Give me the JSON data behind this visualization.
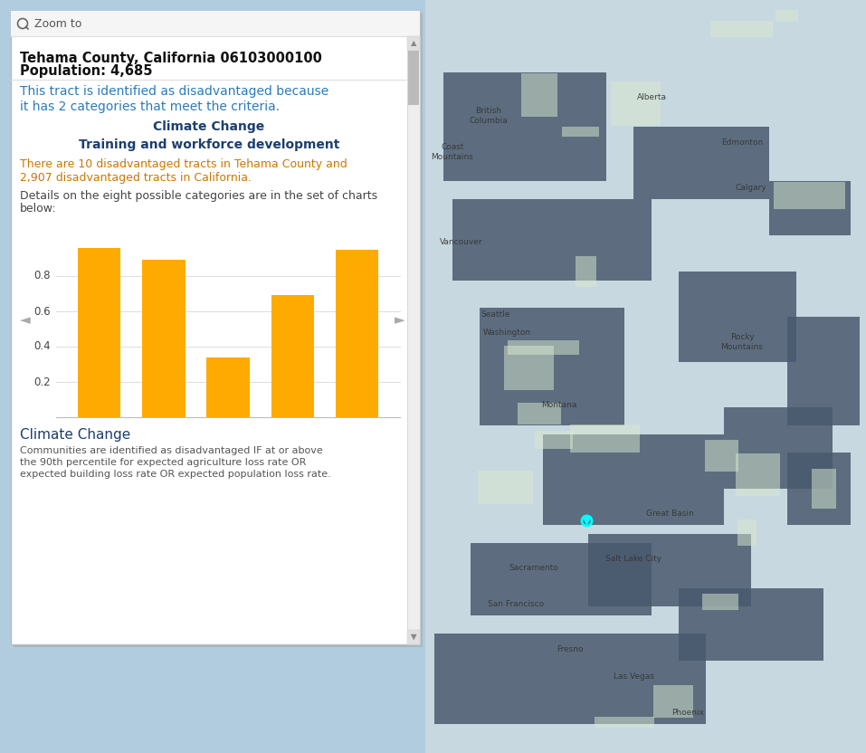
{
  "title_bold": "Tehama County, California 06103000100",
  "title_line2": "Population: 4,685",
  "category1": "Climate Change",
  "category2": "Training and workforce development",
  "orange_line1": "There are 10 disadvantaged tracts in Tehama County and",
  "orange_line2": "2,907 disadvantaged tracts in California.",
  "details_line1": "Details on the eight possible categories are in the set of charts",
  "details_line2": "below:",
  "bar_values": [
    0.96,
    0.89,
    0.34,
    0.69,
    0.95
  ],
  "bar_color": "#FFAA00",
  "chart_title": "Climate Change",
  "chart_desc_line1": "Communities are identified as disadvantaged IF at or above",
  "chart_desc_line2": "the 90th percentile for expected agriculture loss rate OR",
  "chart_desc_line3": "expected building loss rate OR expected population loss rate.",
  "zoom_text": "Zoom to",
  "nav_left": "◄",
  "nav_right": "►",
  "yticks": [
    0.2,
    0.4,
    0.6,
    0.8
  ],
  "panel_bg": "#FFFFFF",
  "zoom_bar_bg": "#F7F7F7",
  "border_color": "#CCCCCC",
  "scrollbar_bg": "#E0E0E0",
  "scrollbar_thumb": "#AAAAAA",
  "text_dark": "#1A1A1A",
  "text_blue": "#2B7BB9",
  "text_category": "#1C3F6E",
  "text_orange": "#CC7700",
  "text_gray": "#444444",
  "map_bg": "#C8D8E8",
  "overall_bg": "#B0CCDE",
  "disadv_line1": "This tract is identified as disadvantaged because",
  "disadv_line2": "it has 2 categories that meet the criteria."
}
